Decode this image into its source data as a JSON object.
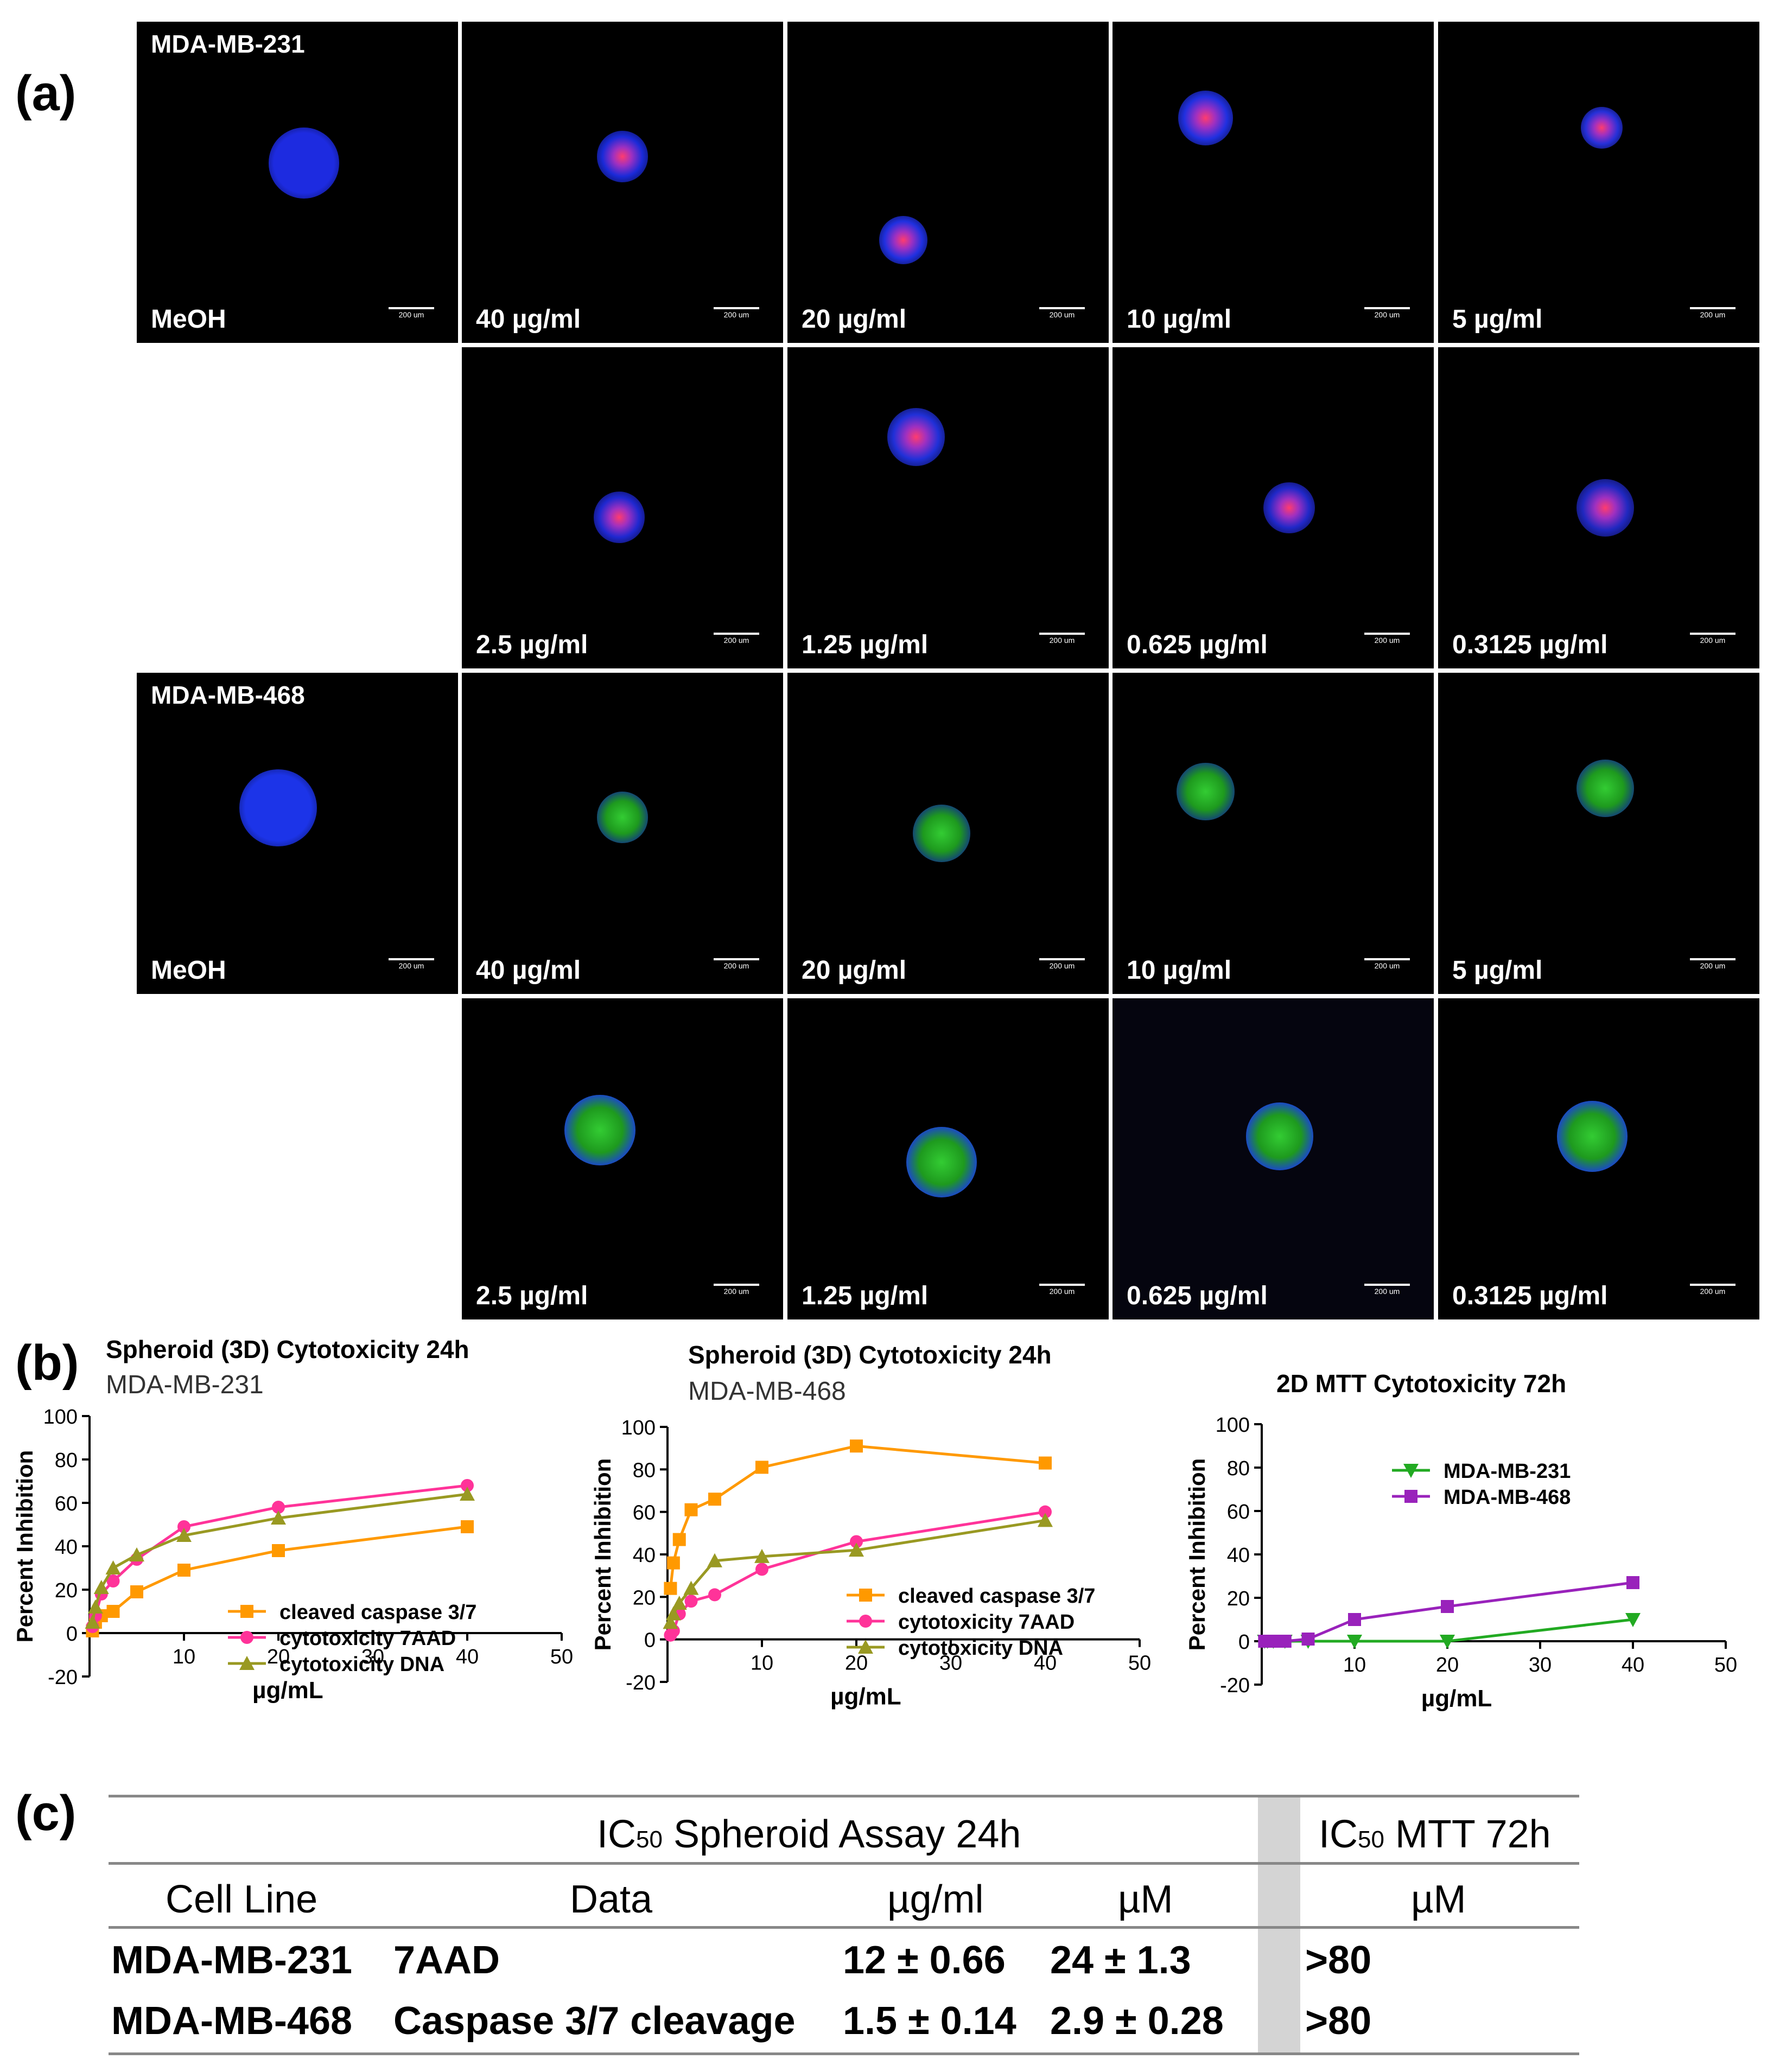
{
  "panels": {
    "a": "(a)",
    "b": "(b)",
    "c": "(c)"
  },
  "scale_bar_label": "200 um",
  "microscopy": {
    "cell_lines": [
      {
        "name": "MDA-MB-231",
        "control_label": "MeOH",
        "row1": [
          "40 µg/ml",
          "20 µg/ml",
          "10 µg/ml",
          "5 µg/ml"
        ],
        "row2": [
          "2.5 µg/ml",
          "1.25 µg/ml",
          "0.625 µg/ml",
          "0.3125 µg/ml"
        ]
      },
      {
        "name": "MDA-MB-468",
        "control_label": "MeOH",
        "row1": [
          "40 µg/ml",
          "20 µg/ml",
          "10 µg/ml",
          "5 µg/ml"
        ],
        "row2": [
          "2.5 µg/ml",
          "1.25 µg/ml",
          "0.625 µg/ml",
          "0.3125 µg/ml"
        ]
      }
    ]
  },
  "chart_data": [
    {
      "type": "line",
      "title": "Spheroid (3D) Cytotoxicity 24h",
      "subtitle": "MDA-MB-231",
      "xlabel": "µg/mL",
      "ylabel": "Percent Inhibition",
      "xlim": [
        0,
        50
      ],
      "ylim": [
        -20,
        100
      ],
      "xticks": [
        10,
        20,
        30,
        40,
        50
      ],
      "yticks": [
        -20,
        0,
        20,
        40,
        60,
        80,
        100
      ],
      "legend": "inside-bottom",
      "series": [
        {
          "name": "cleaved caspase 3/7",
          "color": "#FF9900",
          "marker": "square",
          "x": [
            0.3125,
            0.625,
            1.25,
            2.5,
            5,
            10,
            20,
            40
          ],
          "y": [
            1,
            5,
            8,
            10,
            19,
            29,
            38,
            49
          ]
        },
        {
          "name": "cytotoxicity 7AAD",
          "color": "#FF3399",
          "marker": "circle",
          "x": [
            0.3125,
            0.625,
            1.25,
            2.5,
            5,
            10,
            20,
            40
          ],
          "y": [
            3,
            8,
            18,
            24,
            34,
            49,
            58,
            68
          ]
        },
        {
          "name": "cytotoxicity DNA",
          "color": "#999922",
          "marker": "triangle",
          "x": [
            0.3125,
            0.625,
            1.25,
            2.5,
            5,
            10,
            20,
            40
          ],
          "y": [
            5,
            12,
            21,
            30,
            36,
            45,
            53,
            64
          ]
        }
      ]
    },
    {
      "type": "line",
      "title": "Spheroid (3D) Cytotoxicity 24h",
      "subtitle": "MDA-MB-468",
      "xlabel": "µg/mL",
      "ylabel": "Percent Inhibition",
      "xlim": [
        0,
        50
      ],
      "ylim": [
        -20,
        100
      ],
      "xticks": [
        10,
        20,
        30,
        40,
        50
      ],
      "yticks": [
        -20,
        0,
        20,
        40,
        60,
        80,
        100
      ],
      "legend": "inside-bottom",
      "series": [
        {
          "name": "cleaved caspase 3/7",
          "color": "#FF9900",
          "marker": "square",
          "x": [
            0.3125,
            0.625,
            1.25,
            2.5,
            5,
            10,
            20,
            40
          ],
          "y": [
            24,
            36,
            47,
            61,
            66,
            81,
            91,
            83
          ]
        },
        {
          "name": "cytotoxicity 7AAD",
          "color": "#FF3399",
          "marker": "circle",
          "x": [
            0.3125,
            0.625,
            1.25,
            2.5,
            5,
            10,
            20,
            40
          ],
          "y": [
            2,
            4,
            12,
            18,
            21,
            33,
            46,
            60
          ]
        },
        {
          "name": "cytotoxicity DNA",
          "color": "#999922",
          "marker": "triangle",
          "x": [
            0.3125,
            0.625,
            1.25,
            2.5,
            5,
            10,
            20,
            40
          ],
          "y": [
            8,
            12,
            17,
            24,
            37,
            39,
            42,
            56
          ]
        }
      ]
    },
    {
      "type": "line",
      "title": "2D MTT Cytotoxicity 72h",
      "subtitle": "",
      "xlabel": "µg/mL",
      "ylabel": "Percent Inhibition",
      "xlim": [
        0,
        50
      ],
      "ylim": [
        -20,
        100
      ],
      "xticks": [
        10,
        20,
        30,
        40,
        50
      ],
      "yticks": [
        -20,
        0,
        20,
        40,
        60,
        80,
        100
      ],
      "legend": "top-center",
      "series": [
        {
          "name": "MDA-MB-231",
          "color": "#22AA22",
          "marker": "triangle-down",
          "x": [
            0.3125,
            0.625,
            1.25,
            2.5,
            5,
            10,
            20,
            40
          ],
          "y": [
            0,
            0,
            0,
            0,
            0,
            0,
            0,
            10
          ]
        },
        {
          "name": "MDA-MB-468",
          "color": "#9922BB",
          "marker": "square",
          "x": [
            0.3125,
            0.625,
            1.25,
            2.5,
            5,
            10,
            20,
            40
          ],
          "y": [
            0,
            0,
            0,
            0,
            1,
            10,
            16,
            27
          ]
        }
      ]
    },
    {
      "type": "table",
      "group_headers": {
        "spheroid": [
          "IC",
          "50",
          " Spheroid Assay 24h"
        ],
        "mtt": [
          "IC",
          "50",
          " MTT 72h"
        ]
      },
      "columns": [
        "Cell Line",
        "Data",
        "µg/ml",
        "µM",
        "µM"
      ],
      "rows": [
        [
          "MDA-MB-231",
          "7AAD",
          "12 ± 0.66",
          "24 ± 1.3",
          ">80"
        ],
        [
          "MDA-MB-468",
          "Caspase  3/7 cleavage",
          "1.5 ± 0.14",
          "2.9 ± 0.28",
          ">80"
        ]
      ]
    }
  ]
}
